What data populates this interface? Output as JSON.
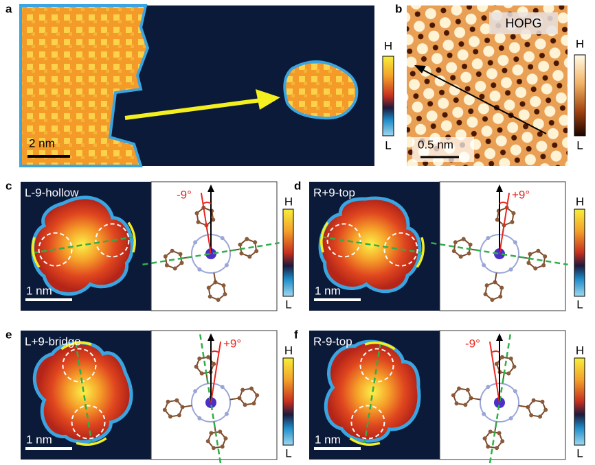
{
  "panels": [
    {
      "letter": "a",
      "scale_bar": "2 nm",
      "colorbar": {
        "high": "H",
        "low": "L"
      }
    },
    {
      "letter": "b",
      "label": "HOPG",
      "scale_bar": "0.5 nm",
      "colorbar": {
        "high": "H",
        "low": "L"
      }
    },
    {
      "letter": "c",
      "title": "L-9-hollow",
      "scale_bar": "1 nm",
      "angle": "-9°",
      "colorbar": {
        "high": "H",
        "low": "L"
      }
    },
    {
      "letter": "d",
      "title": "R+9-top",
      "scale_bar": "1 nm",
      "angle": "+9°",
      "colorbar": {
        "high": "H",
        "low": "L"
      }
    },
    {
      "letter": "e",
      "title": "L+9-bridge",
      "scale_bar": "1 nm",
      "angle": "+9°",
      "colorbar": {
        "high": "H",
        "low": "L"
      }
    },
    {
      "letter": "f",
      "title": "R-9-top",
      "scale_bar": "1 nm",
      "angle": "-9°",
      "colorbar": {
        "high": "H",
        "low": "L"
      }
    }
  ]
}
